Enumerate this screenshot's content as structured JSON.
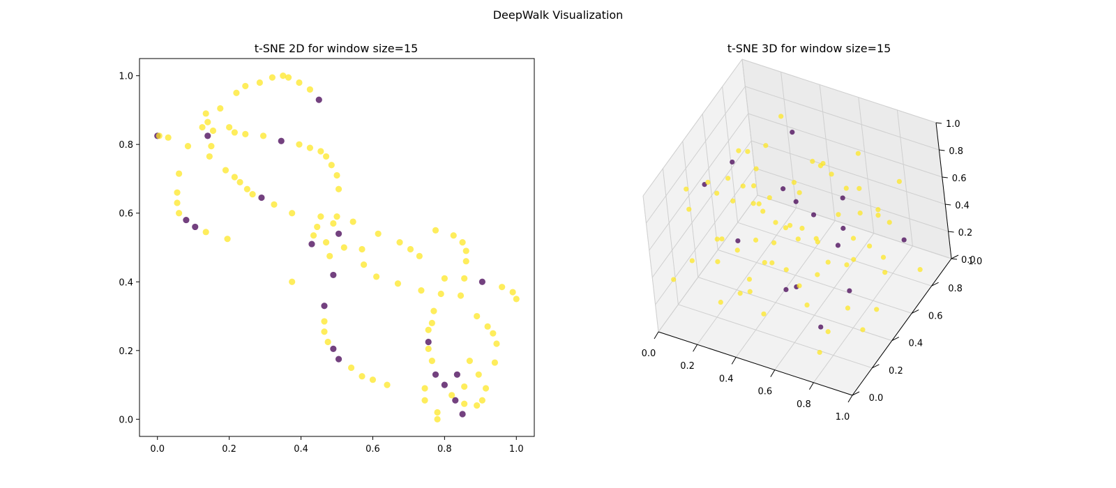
{
  "suptitle": "DeepWalk Visualization",
  "colors": {
    "yellow": "#FDE725",
    "purple": "#440154"
  },
  "chart_data": [
    {
      "type": "scatter",
      "title": "t-SNE 2D for window size=15",
      "xlim": [
        -0.05,
        1.05
      ],
      "ylim": [
        -0.05,
        1.05
      ],
      "xticks": [
        "0.0",
        "0.2",
        "0.4",
        "0.6",
        "0.8",
        "1.0"
      ],
      "yticks": [
        "0.0",
        "0.2",
        "0.4",
        "0.6",
        "0.8",
        "1.0"
      ],
      "grid": false,
      "points": [
        [
          0.0,
          0.825,
          1
        ],
        [
          0.005,
          0.825,
          0
        ],
        [
          0.03,
          0.82,
          0
        ],
        [
          0.085,
          0.795,
          0
        ],
        [
          0.06,
          0.715,
          0
        ],
        [
          0.055,
          0.66,
          0
        ],
        [
          0.055,
          0.63,
          0
        ],
        [
          0.06,
          0.6,
          0
        ],
        [
          0.08,
          0.58,
          1
        ],
        [
          0.105,
          0.56,
          1
        ],
        [
          0.135,
          0.545,
          0
        ],
        [
          0.195,
          0.525,
          0
        ],
        [
          0.125,
          0.85,
          0
        ],
        [
          0.135,
          0.89,
          0
        ],
        [
          0.14,
          0.865,
          0
        ],
        [
          0.14,
          0.825,
          1
        ],
        [
          0.155,
          0.84,
          0
        ],
        [
          0.15,
          0.795,
          0
        ],
        [
          0.145,
          0.765,
          0
        ],
        [
          0.175,
          0.905,
          0
        ],
        [
          0.2,
          0.85,
          0
        ],
        [
          0.215,
          0.835,
          0
        ],
        [
          0.245,
          0.83,
          0
        ],
        [
          0.295,
          0.825,
          0
        ],
        [
          0.345,
          0.81,
          1
        ],
        [
          0.395,
          0.8,
          0
        ],
        [
          0.425,
          0.79,
          0
        ],
        [
          0.455,
          0.78,
          0
        ],
        [
          0.47,
          0.765,
          0
        ],
        [
          0.485,
          0.74,
          0
        ],
        [
          0.5,
          0.71,
          0
        ],
        [
          0.505,
          0.67,
          0
        ],
        [
          0.22,
          0.95,
          0
        ],
        [
          0.245,
          0.97,
          0
        ],
        [
          0.285,
          0.98,
          0
        ],
        [
          0.32,
          0.995,
          0
        ],
        [
          0.35,
          1.0,
          0
        ],
        [
          0.365,
          0.995,
          0
        ],
        [
          0.395,
          0.98,
          0
        ],
        [
          0.425,
          0.96,
          0
        ],
        [
          0.45,
          0.93,
          1
        ],
        [
          0.19,
          0.725,
          0
        ],
        [
          0.215,
          0.705,
          0
        ],
        [
          0.23,
          0.69,
          0
        ],
        [
          0.25,
          0.67,
          0
        ],
        [
          0.265,
          0.655,
          0
        ],
        [
          0.29,
          0.645,
          1
        ],
        [
          0.325,
          0.625,
          0
        ],
        [
          0.375,
          0.6,
          0
        ],
        [
          0.375,
          0.4,
          0
        ],
        [
          0.455,
          0.59,
          0
        ],
        [
          0.445,
          0.56,
          0
        ],
        [
          0.435,
          0.535,
          0
        ],
        [
          0.43,
          0.51,
          1
        ],
        [
          0.47,
          0.515,
          0
        ],
        [
          0.49,
          0.57,
          0
        ],
        [
          0.5,
          0.59,
          0
        ],
        [
          0.505,
          0.54,
          1
        ],
        [
          0.52,
          0.5,
          0
        ],
        [
          0.545,
          0.575,
          0
        ],
        [
          0.48,
          0.475,
          0
        ],
        [
          0.49,
          0.42,
          1
        ],
        [
          0.57,
          0.495,
          0
        ],
        [
          0.575,
          0.45,
          0
        ],
        [
          0.615,
          0.54,
          0
        ],
        [
          0.61,
          0.415,
          0
        ],
        [
          0.67,
          0.395,
          0
        ],
        [
          0.675,
          0.515,
          0
        ],
        [
          0.705,
          0.495,
          0
        ],
        [
          0.73,
          0.475,
          0
        ],
        [
          0.735,
          0.375,
          0
        ],
        [
          0.465,
          0.33,
          1
        ],
        [
          0.465,
          0.285,
          0
        ],
        [
          0.465,
          0.255,
          0
        ],
        [
          0.475,
          0.225,
          0
        ],
        [
          0.49,
          0.205,
          1
        ],
        [
          0.505,
          0.175,
          1
        ],
        [
          0.54,
          0.15,
          0
        ],
        [
          0.57,
          0.125,
          0
        ],
        [
          0.6,
          0.115,
          0
        ],
        [
          0.64,
          0.1,
          0
        ],
        [
          0.775,
          0.55,
          0
        ],
        [
          0.825,
          0.535,
          0
        ],
        [
          0.85,
          0.515,
          0
        ],
        [
          0.86,
          0.49,
          0
        ],
        [
          0.86,
          0.46,
          0
        ],
        [
          0.8,
          0.41,
          0
        ],
        [
          0.855,
          0.41,
          0
        ],
        [
          0.79,
          0.365,
          0
        ],
        [
          0.845,
          0.36,
          0
        ],
        [
          0.905,
          0.4,
          1
        ],
        [
          0.96,
          0.385,
          0
        ],
        [
          0.99,
          0.37,
          0
        ],
        [
          1.0,
          0.35,
          0
        ],
        [
          0.77,
          0.315,
          0
        ],
        [
          0.765,
          0.28,
          0
        ],
        [
          0.755,
          0.26,
          0
        ],
        [
          0.755,
          0.225,
          1
        ],
        [
          0.755,
          0.205,
          0
        ],
        [
          0.765,
          0.17,
          0
        ],
        [
          0.775,
          0.13,
          1
        ],
        [
          0.8,
          0.1,
          1
        ],
        [
          0.835,
          0.13,
          1
        ],
        [
          0.87,
          0.17,
          0
        ],
        [
          0.89,
          0.3,
          0
        ],
        [
          0.92,
          0.27,
          0
        ],
        [
          0.935,
          0.25,
          0
        ],
        [
          0.945,
          0.22,
          0
        ],
        [
          0.94,
          0.165,
          0
        ],
        [
          0.895,
          0.13,
          0
        ],
        [
          0.915,
          0.09,
          0
        ],
        [
          0.905,
          0.055,
          0
        ],
        [
          0.89,
          0.04,
          0
        ],
        [
          0.745,
          0.09,
          0
        ],
        [
          0.745,
          0.055,
          0
        ],
        [
          0.78,
          0.02,
          0
        ],
        [
          0.78,
          0.0,
          0
        ],
        [
          0.82,
          0.07,
          0
        ],
        [
          0.83,
          0.055,
          1
        ],
        [
          0.855,
          0.095,
          0
        ],
        [
          0.855,
          0.045,
          0
        ],
        [
          0.85,
          0.015,
          1
        ]
      ]
    },
    {
      "type": "scatter",
      "title": "t-SNE 3D for window size=15",
      "xlim": [
        0,
        1
      ],
      "ylim": [
        0,
        1
      ],
      "zlim": [
        0,
        1
      ],
      "xticks": [
        "0.0",
        "0.2",
        "0.4",
        "0.6",
        "0.8",
        "1.0"
      ],
      "yticks": [
        "0.0",
        "0.2",
        "0.4",
        "0.6",
        "0.8",
        "1.0"
      ],
      "zticks": [
        "0.0",
        "0.2",
        "0.4",
        "0.6",
        "0.8",
        "1.0"
      ],
      "grid": true,
      "points": [
        [
          0.071,
          0.432,
          0.683,
          1
        ],
        [
          0.917,
          0.291,
          0.151,
          0
        ],
        [
          0.838,
          0.021,
          0.219,
          0
        ],
        [
          0.567,
          0.071,
          0.703,
          0
        ],
        [
          0.233,
          0.723,
          0.369,
          0
        ],
        [
          0.584,
          0.968,
          0.612,
          0
        ],
        [
          0.689,
          0.126,
          0.526,
          1
        ],
        [
          0.132,
          0.799,
          0.458,
          0
        ],
        [
          0.669,
          0.837,
          0.102,
          0
        ],
        [
          0.657,
          0.582,
          0.358,
          1
        ],
        [
          0.221,
          0.522,
          0.651,
          0
        ],
        [
          0.812,
          0.098,
          0.316,
          1
        ],
        [
          0.633,
          0.412,
          0.302,
          0
        ],
        [
          0.913,
          0.188,
          0.412,
          0
        ],
        [
          0.057,
          0.719,
          0.553,
          1
        ],
        [
          0.312,
          0.821,
          0.278,
          1
        ],
        [
          0.371,
          0.426,
          0.632,
          0
        ],
        [
          0.188,
          0.572,
          0.845,
          0
        ],
        [
          0.481,
          0.312,
          0.566,
          0
        ],
        [
          0.691,
          0.912,
          0.305,
          0
        ],
        [
          0.079,
          0.254,
          0.832,
          0
        ],
        [
          0.332,
          0.688,
          0.516,
          1
        ],
        [
          0.512,
          0.321,
          0.227,
          1
        ],
        [
          0.456,
          0.588,
          0.721,
          0
        ],
        [
          0.721,
          0.533,
          0.103,
          1
        ],
        [
          0.267,
          0.151,
          0.489,
          0
        ],
        [
          0.854,
          0.733,
          0.467,
          0
        ],
        [
          0.138,
          0.421,
          0.325,
          0
        ],
        [
          0.601,
          0.234,
          0.811,
          0
        ],
        [
          0.445,
          0.878,
          0.564,
          0
        ],
        [
          0.951,
          0.376,
          0.231,
          0
        ],
        [
          0.399,
          0.101,
          0.368,
          0
        ],
        [
          0.165,
          0.688,
          0.712,
          0
        ],
        [
          0.751,
          0.654,
          0.567,
          0
        ],
        [
          0.573,
          0.781,
          0.244,
          1
        ],
        [
          0.302,
          0.354,
          0.172,
          0
        ],
        [
          0.886,
          0.589,
          0.679,
          0
        ],
        [
          0.044,
          0.112,
          0.293,
          0
        ],
        [
          0.525,
          0.657,
          0.839,
          0
        ],
        [
          0.679,
          0.443,
          0.384,
          0
        ],
        [
          0.251,
          0.956,
          0.625,
          1
        ],
        [
          0.798,
          0.178,
          0.855,
          0
        ],
        [
          0.354,
          0.554,
          0.413,
          0
        ],
        [
          0.432,
          0.233,
          0.099,
          0
        ],
        [
          0.968,
          0.768,
          0.138,
          0
        ],
        [
          0.104,
          0.589,
          0.586,
          0
        ],
        [
          0.487,
          0.045,
          0.478,
          0
        ],
        [
          0.715,
          0.304,
          0.714,
          0
        ],
        [
          0.197,
          0.258,
          0.933,
          0
        ],
        [
          0.612,
          0.689,
          0.456,
          0
        ],
        [
          0.285,
          0.789,
          0.123,
          0
        ],
        [
          0.836,
          0.412,
          0.508,
          0
        ],
        [
          0.378,
          0.167,
          0.678,
          1
        ],
        [
          0.543,
          0.856,
          0.378,
          1
        ],
        [
          0.026,
          0.345,
          0.567,
          0
        ],
        [
          0.928,
          0.523,
          0.345,
          0
        ],
        [
          0.456,
          0.434,
          0.234,
          0
        ],
        [
          0.312,
          0.612,
          0.901,
          0
        ],
        [
          0.678,
          0.789,
          0.578,
          0
        ],
        [
          0.121,
          0.167,
          0.412,
          0
        ],
        [
          0.765,
          0.234,
          0.123,
          0
        ],
        [
          0.588,
          0.512,
          0.621,
          1
        ],
        [
          0.234,
          0.901,
          0.789,
          0
        ],
        [
          0.834,
          0.678,
          0.256,
          0
        ],
        [
          0.409,
          0.289,
          0.845,
          0
        ],
        [
          0.167,
          0.498,
          0.178,
          0
        ],
        [
          0.723,
          0.145,
          0.389,
          0
        ],
        [
          0.512,
          0.745,
          0.712,
          0
        ],
        [
          0.345,
          0.378,
          0.456,
          0
        ],
        [
          0.989,
          0.623,
          0.512,
          1
        ],
        [
          0.621,
          0.356,
          0.956,
          0
        ],
        [
          0.089,
          0.634,
          0.367,
          0
        ],
        [
          0.276,
          0.123,
          0.223,
          0
        ],
        [
          0.856,
          0.856,
          0.645,
          0
        ],
        [
          0.534,
          0.189,
          0.567,
          0
        ],
        [
          0.423,
          0.667,
          0.289,
          0
        ],
        [
          0.178,
          0.356,
          0.745,
          0
        ],
        [
          0.745,
          0.567,
          0.834,
          0
        ],
        [
          0.612,
          0.278,
          0.345,
          0
        ],
        [
          0.323,
          0.478,
          0.612,
          0
        ],
        [
          0.067,
          0.867,
          0.234,
          0
        ],
        [
          0.889,
          0.345,
          0.756,
          0
        ],
        [
          0.456,
          0.923,
          0.445,
          0
        ],
        [
          0.234,
          0.223,
          0.567,
          0
        ],
        [
          0.667,
          0.623,
          0.178,
          0
        ],
        [
          0.545,
          0.423,
          0.512,
          0
        ]
      ]
    }
  ]
}
